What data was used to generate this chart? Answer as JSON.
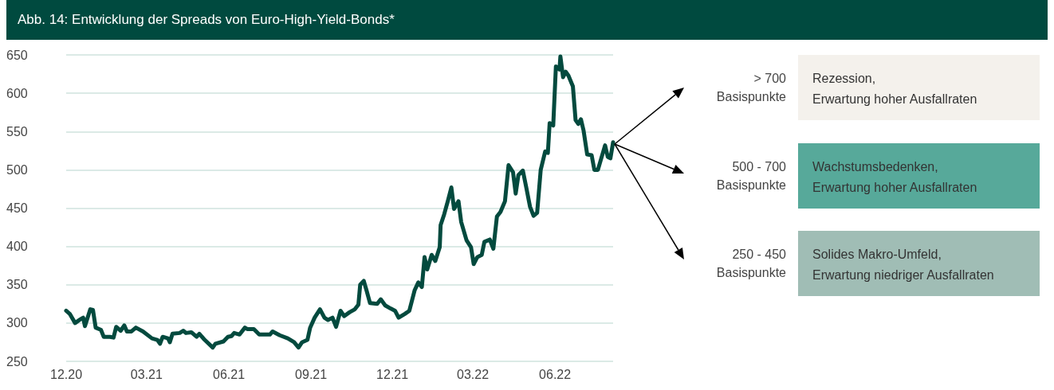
{
  "chart_data": {
    "type": "line",
    "title": "Abb. 14: Entwicklung der Spreads von Euro-High-Yield-Bonds*",
    "x": [
      "2020-12-01",
      "2020-12-05",
      "2020-12-11",
      "2020-12-17",
      "2020-12-20",
      "2020-12-22",
      "2020-12-28",
      "2020-12-31",
      "2021-01-03",
      "2021-01-09",
      "2021-01-12",
      "2021-01-19",
      "2021-01-23",
      "2021-01-26",
      "2021-01-31",
      "2021-02-04",
      "2021-02-07",
      "2021-02-12",
      "2021-02-17",
      "2021-02-25",
      "2021-03-07",
      "2021-03-13",
      "2021-03-16",
      "2021-03-19",
      "2021-03-25",
      "2021-03-27",
      "2021-03-30",
      "2021-04-07",
      "2021-04-11",
      "2021-04-14",
      "2021-04-20",
      "2021-04-26",
      "2021-04-29",
      "2021-05-05",
      "2021-05-14",
      "2021-05-17",
      "2021-05-26",
      "2021-05-31",
      "2021-06-04",
      "2021-06-07",
      "2021-06-13",
      "2021-06-19",
      "2021-06-22",
      "2021-06-29",
      "2021-07-05",
      "2021-07-17",
      "2021-07-20",
      "2021-07-28",
      "2021-08-06",
      "2021-08-13",
      "2021-08-18",
      "2021-08-22",
      "2021-08-28",
      "2021-08-31",
      "2021-09-05",
      "2021-09-11",
      "2021-09-16",
      "2021-09-20",
      "2021-09-25",
      "2021-09-29",
      "2021-10-04",
      "2021-10-08",
      "2021-10-14",
      "2021-10-20",
      "2021-10-24",
      "2021-10-26",
      "2021-10-30",
      "2021-11-02",
      "2021-11-06",
      "2021-11-14",
      "2021-11-18",
      "2021-11-23",
      "2021-11-29",
      "2021-12-04",
      "2021-12-08",
      "2021-12-15",
      "2021-12-20",
      "2021-12-26",
      "2021-12-30",
      "2022-01-03",
      "2022-01-06",
      "2022-01-09",
      "2022-01-14",
      "2022-01-18",
      "2022-01-23",
      "2022-01-24",
      "2022-01-28",
      "2022-02-01",
      "2022-02-05",
      "2022-02-08",
      "2022-02-13",
      "2022-02-16",
      "2022-02-22",
      "2022-02-27",
      "2022-03-02",
      "2022-03-06",
      "2022-03-11",
      "2022-03-14",
      "2022-03-20",
      "2022-03-24",
      "2022-03-28",
      "2022-04-01",
      "2022-04-06",
      "2022-04-10",
      "2022-04-15",
      "2022-04-18",
      "2022-04-21",
      "2022-04-26",
      "2022-04-30",
      "2022-05-04",
      "2022-05-08",
      "2022-05-12",
      "2022-05-16",
      "2022-05-21",
      "2022-05-24",
      "2022-05-26",
      "2022-05-30",
      "2022-06-02",
      "2022-06-06",
      "2022-06-07",
      "2022-06-10",
      "2022-06-13",
      "2022-06-16",
      "2022-06-21",
      "2022-06-24",
      "2022-06-27",
      "2022-06-30",
      "2022-07-03",
      "2022-07-07",
      "2022-07-12",
      "2022-07-15",
      "2022-07-19",
      "2022-07-27",
      "2022-07-30",
      "2022-08-02",
      "2022-08-05"
    ],
    "series": [
      {
        "color": "#034a3e",
        "values": [
          316,
          312,
          300,
          305,
          307,
          296,
          318,
          317,
          294,
          291,
          282,
          282,
          281,
          295,
          290,
          297,
          289,
          289,
          294,
          289,
          280,
          278,
          273,
          282,
          280,
          275,
          286,
          287,
          290,
          287,
          288,
          282,
          286,
          278,
          268,
          273,
          276,
          282,
          283,
          287,
          285,
          294,
          292,
          292,
          285,
          285,
          289,
          284,
          280,
          275,
          268,
          275,
          278,
          294,
          307,
          318,
          307,
          304,
          307,
          295,
          316,
          309,
          314,
          318,
          324,
          350,
          355,
          343,
          326,
          325,
          331,
          323,
          319,
          316,
          307,
          312,
          316,
          343,
          353,
          347,
          386,
          370,
          389,
          381,
          399,
          428,
          442,
          459,
          477,
          449,
          459,
          432,
          408,
          399,
          377,
          386,
          389,
          406,
          409,
          397,
          439,
          445,
          459,
          506,
          497,
          469,
          493,
          499,
          476,
          452,
          440,
          444,
          500,
          524,
          522,
          561,
          558,
          635,
          631,
          648,
          621,
          628,
          623,
          609,
          565,
          560,
          566,
          551,
          520,
          519,
          500,
          500,
          532,
          517,
          515,
          536
        ]
      }
    ],
    "xlim": [
      "2020-12-01",
      "2022-08-05"
    ],
    "xticks": [
      {
        "value": "2020-12-01",
        "label": "12.20"
      },
      {
        "value": "2021-03-01",
        "label": "03.21"
      },
      {
        "value": "2021-06-01",
        "label": "06.21"
      },
      {
        "value": "2021-09-01",
        "label": "09.21"
      },
      {
        "value": "2021-12-01",
        "label": "12.21"
      },
      {
        "value": "2022-03-01",
        "label": "03.22"
      },
      {
        "value": "2022-06-01",
        "label": "06.22"
      }
    ],
    "ylim": [
      250,
      650
    ],
    "yticks": [
      250,
      300,
      350,
      400,
      450,
      500,
      550,
      600,
      650
    ],
    "grid": "y",
    "marker": "none",
    "line_style": "solid",
    "annotations": [
      "> 700\nBasispunkte",
      "Rezession,\nErwartung hoher Ausfallraten",
      "500 - 700\nBasispunkte",
      "Wachstumsbedenken,\nErwartung hoher Ausfallraten",
      "250 - 450\nBasispunkte",
      "Solides Makro-Umfeld,\nErwartung niedriger Ausfallraten"
    ]
  }
}
